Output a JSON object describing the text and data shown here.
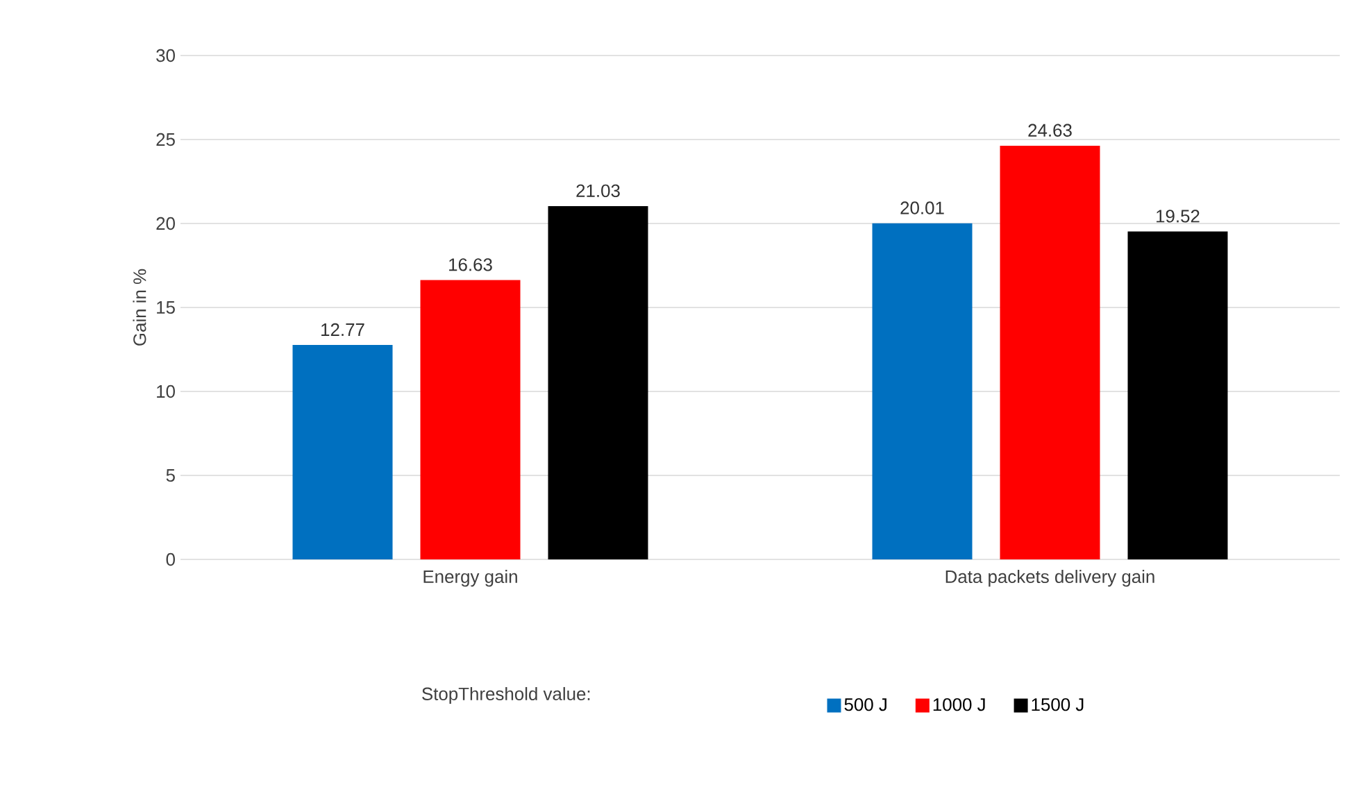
{
  "chart_data": {
    "type": "bar",
    "ylabel": "Gain in %",
    "legend_title": "StopThreshold value:",
    "categories": [
      "Energy gain",
      "Data packets delivery gain"
    ],
    "series": [
      {
        "name": "500 J",
        "color": "#0070c0",
        "values": [
          12.77,
          20.01
        ]
      },
      {
        "name": "1000 J",
        "color": "#ff0000",
        "values": [
          16.63,
          24.63
        ]
      },
      {
        "name": "1500 J",
        "color": "#000000",
        "values": [
          21.03,
          19.52
        ]
      }
    ],
    "ylim": [
      0,
      30
    ],
    "yticks": [
      0,
      5,
      10,
      15,
      20,
      25,
      30
    ],
    "grid": "y",
    "legend": "bottom",
    "data_labels": true
  }
}
